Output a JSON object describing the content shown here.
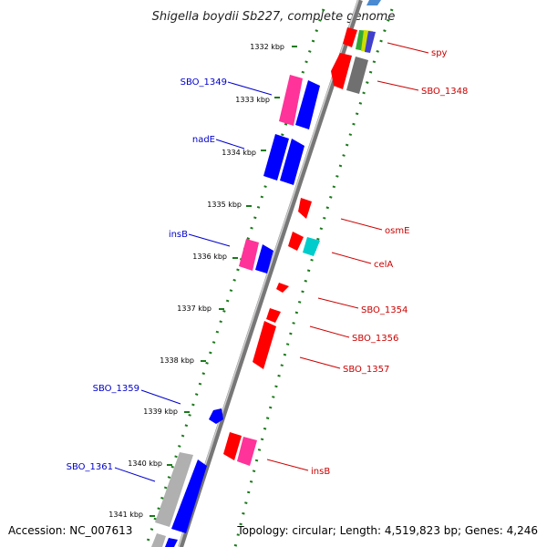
{
  "title": "Shigella boydii Sb227, complete genome",
  "accession": "Accession: NC_007613",
  "summary": "Topology: circular; Length: 4,519,823 bp; Genes: 4,246",
  "ticks": [
    "1332 kbp",
    "1333 kbp",
    "1334 kbp",
    "1335 kbp",
    "1336 kbp",
    "1337 kbp",
    "1338 kbp",
    "1339 kbp",
    "1340 kbp",
    "1341 kbp"
  ],
  "left_labels": [
    "SBO_1349",
    "nadE",
    "insB",
    "SBO_1359",
    "SBO_1361"
  ],
  "right_labels": [
    "spy",
    "SBO_1348",
    "osmE",
    "celA",
    "SBO_1354",
    "SBO_1356",
    "SBO_1357",
    "insB"
  ],
  "colors": {
    "forward_label": "#0000cc",
    "reverse_label": "#cc0000",
    "backbone": "#888888",
    "tick_dots": "#1a7a1a",
    "cds_blue": "#0000ff",
    "cds_red": "#ff0000",
    "cds_magenta": "#ff3399",
    "cds_cyan": "#00cccc",
    "cds_gray": "#707070",
    "cds_lightgray": "#b0b0b0"
  }
}
